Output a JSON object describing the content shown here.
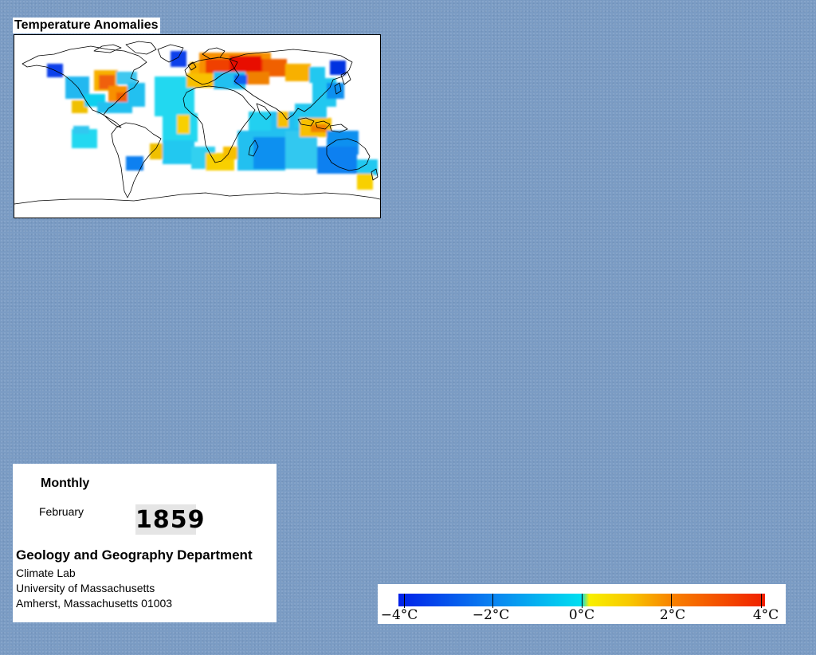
{
  "map": {
    "title": "Temperature Anomalies",
    "colors": {
      "ocean_bg": "#ffffff",
      "coast": "#000000",
      "page_bg": "#7b9cc4"
    }
  },
  "info": {
    "frequency": "Monthly",
    "month": "February",
    "year": "1859",
    "department": "Geology and Geography Department",
    "lab": "Climate Lab",
    "university": "University of Massachusetts",
    "address": "Amherst, Massachusetts 01003"
  },
  "legend": {
    "min_c": -4,
    "max_c": 4,
    "labels": [
      "−4°C",
      "−2°C",
      "0°C",
      "2°C",
      "4°C"
    ],
    "colors": [
      "#0020e8",
      "#0a80f0",
      "#00e0f0",
      "#f8f000",
      "#f88000",
      "#f02000"
    ]
  }
}
